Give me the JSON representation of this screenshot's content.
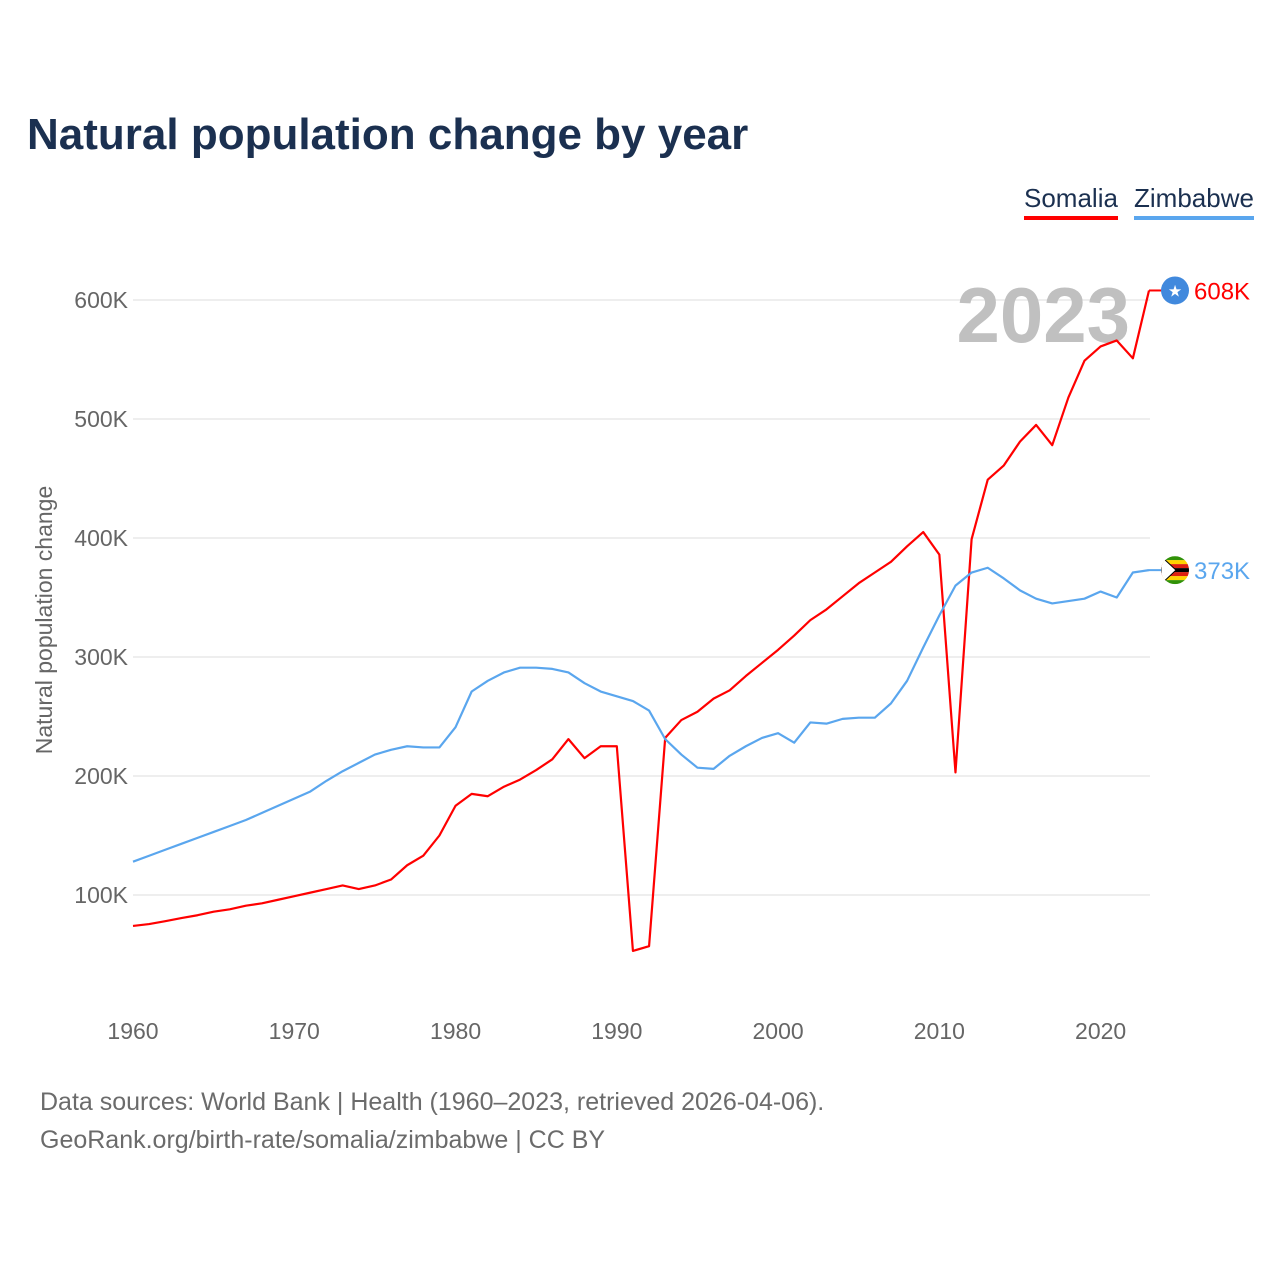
{
  "title": "Natural population change by year",
  "legend": [
    {
      "label": "Somalia",
      "color": "#ff0000"
    },
    {
      "label": "Zimbabwe",
      "color": "#5aa6ee"
    }
  ],
  "footer": {
    "line1": "Data sources: World Bank | Health (1960–2023, retrieved 2026-04-06).",
    "line2": "GeoRank.org/birth-rate/somalia/zimbabwe | CC BY"
  },
  "chart_data": {
    "type": "line",
    "title": "Natural population change by year",
    "xlabel": "",
    "ylabel": "Natural population change",
    "xlim": [
      1960,
      2023
    ],
    "ylim": [
      0,
      620000
    ],
    "grid": true,
    "legend_position": "top-right",
    "year_label": "2023",
    "x_ticks": [
      1960,
      1970,
      1980,
      1990,
      2000,
      2010,
      2020
    ],
    "x_tick_labels": [
      "1960",
      "1970",
      "1980",
      "1990",
      "2000",
      "2010",
      "2020"
    ],
    "y_ticks": [
      100000,
      200000,
      300000,
      400000,
      500000,
      600000
    ],
    "y_tick_labels": [
      "100K",
      "200K",
      "300K",
      "400K",
      "500K",
      "600K"
    ],
    "x": [
      1960,
      1961,
      1962,
      1963,
      1964,
      1965,
      1966,
      1967,
      1968,
      1969,
      1970,
      1971,
      1972,
      1973,
      1974,
      1975,
      1976,
      1977,
      1978,
      1979,
      1980,
      1981,
      1982,
      1983,
      1984,
      1985,
      1986,
      1987,
      1988,
      1989,
      1990,
      1991,
      1992,
      1993,
      1994,
      1995,
      1996,
      1997,
      1998,
      1999,
      2000,
      2001,
      2002,
      2003,
      2004,
      2005,
      2006,
      2007,
      2008,
      2009,
      2010,
      2011,
      2012,
      2013,
      2014,
      2015,
      2016,
      2017,
      2018,
      2019,
      2020,
      2021,
      2022,
      2023
    ],
    "series": [
      {
        "name": "Somalia",
        "color": "#ff0000",
        "end_label": "608K",
        "icon": "somalia-flag-icon",
        "values": [
          74000,
          75600,
          78000,
          80600,
          83000,
          86000,
          88000,
          91000,
          93000,
          96000,
          99000,
          102000,
          105000,
          108000,
          105000,
          108000,
          113000,
          125000,
          133000,
          150000,
          175000,
          185000,
          183000,
          191000,
          197000,
          205000,
          214000,
          231000,
          215000,
          225000,
          225000,
          53000,
          57000,
          232000,
          247000,
          254000,
          265000,
          272000,
          284000,
          295000,
          306000,
          318000,
          331000,
          340000,
          351000,
          362000,
          371000,
          380000,
          393000,
          405000,
          386000,
          203000,
          399000,
          449000,
          461000,
          481000,
          495000,
          478000,
          518000,
          549000,
          561000,
          566000,
          551000,
          608000
        ]
      },
      {
        "name": "Zimbabwe",
        "color": "#5aa6ee",
        "end_label": "373K",
        "icon": "zimbabwe-flag-icon",
        "values": [
          128000,
          133000,
          138000,
          143000,
          148000,
          153000,
          158000,
          163000,
          169000,
          175000,
          181000,
          187000,
          196000,
          204000,
          211000,
          218000,
          222000,
          225000,
          224000,
          224000,
          241000,
          271000,
          280000,
          287000,
          291000,
          291000,
          290000,
          287000,
          278000,
          271000,
          267000,
          263000,
          255000,
          231000,
          218000,
          207000,
          206000,
          217000,
          225000,
          232000,
          236000,
          228000,
          245000,
          244000,
          248000,
          249000,
          249000,
          261000,
          280000,
          308000,
          335000,
          360000,
          371000,
          375000,
          366000,
          356000,
          349000,
          345000,
          347000,
          349000,
          355000,
          350000,
          371000,
          373000
        ]
      }
    ]
  }
}
